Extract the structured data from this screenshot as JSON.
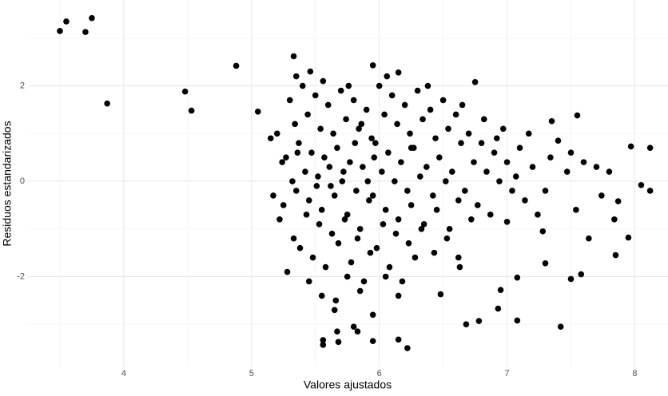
{
  "chart_data": {
    "type": "scatter",
    "x_label": "Valores ajustados",
    "y_label": "Residuos estandarizados",
    "color": "#000000",
    "grid": true,
    "xlim": [
      3.25,
      8.26
    ],
    "ylim": [
      -3.9,
      3.8
    ],
    "xticks": [
      4,
      5,
      6,
      7,
      8
    ],
    "yticks": [
      -2,
      0,
      2
    ],
    "x_minor_ticks": [
      3.5,
      4.5,
      5.5,
      6.5,
      7.5
    ],
    "y_minor_ticks": [
      -3,
      -1,
      1,
      3
    ],
    "x": [
      3.5,
      3.55,
      3.7,
      3.75,
      3.87,
      4.48,
      4.53,
      4.88,
      5.05,
      5.33,
      5.95,
      6.15,
      6.75,
      7.55,
      7.35,
      7.97,
      8.12,
      8.12,
      8.05,
      7.5,
      7.58,
      7.42,
      7.08,
      7.08,
      6.68,
      6.78,
      6.93,
      6.95,
      6.48,
      6.22,
      6.15,
      5.95,
      5.56,
      5.56,
      5.68,
      5.67,
      5.8,
      5.83,
      7.85,
      7.95,
      7.87,
      7.3,
      7.28,
      7.4,
      7.0,
      6.62,
      5.2,
      5.24,
      5.17,
      5.22,
      5.15,
      5.3,
      5.34,
      5.27,
      5.32,
      5.25,
      5.33,
      5.28,
      5.35,
      5.4,
      5.44,
      5.37,
      5.42,
      5.35,
      5.43,
      5.38,
      5.45,
      5.36,
      5.5,
      5.54,
      5.47,
      5.52,
      5.45,
      5.53,
      5.48,
      5.55,
      5.46,
      5.51,
      5.6,
      5.64,
      5.57,
      5.62,
      5.55,
      5.63,
      5.58,
      5.65,
      5.56,
      5.61,
      5.7,
      5.74,
      5.67,
      5.72,
      5.65,
      5.73,
      5.68,
      5.75,
      5.66,
      5.71,
      5.8,
      5.84,
      5.77,
      5.82,
      5.75,
      5.83,
      5.78,
      5.85,
      5.76,
      5.81,
      5.9,
      5.94,
      5.87,
      5.92,
      5.85,
      5.93,
      5.88,
      5.95,
      5.86,
      5.91,
      6.0,
      6.04,
      5.97,
      6.02,
      5.95,
      6.03,
      5.98,
      6.05,
      5.96,
      6.1,
      6.14,
      6.07,
      6.12,
      6.05,
      6.13,
      6.08,
      6.15,
      6.06,
      6.2,
      6.24,
      6.17,
      6.22,
      6.15,
      6.23,
      6.18,
      6.25,
      6.3,
      6.34,
      6.27,
      6.32,
      6.25,
      6.33,
      6.28,
      6.4,
      6.44,
      6.37,
      6.42,
      6.35,
      6.43,
      6.38,
      6.5,
      6.54,
      6.47,
      6.52,
      6.45,
      6.53,
      6.6,
      6.64,
      6.57,
      6.62,
      6.55,
      6.63,
      6.7,
      6.74,
      6.67,
      6.72,
      6.65,
      6.8,
      6.84,
      6.77,
      6.82,
      6.9,
      6.94,
      6.87,
      6.92,
      7.0,
      7.04,
      6.97,
      7.1,
      7.14,
      7.07,
      7.2,
      7.24,
      7.17,
      7.3,
      7.34,
      7.5,
      7.54,
      7.47,
      7.6,
      7.64,
      7.7,
      7.74,
      7.8,
      7.84
    ],
    "y": [
      3.15,
      3.35,
      3.13,
      3.42,
      1.63,
      1.88,
      1.48,
      2.42,
      1.46,
      2.62,
      2.43,
      2.28,
      2.08,
      1.38,
      1.26,
      0.73,
      0.7,
      -0.2,
      -0.08,
      -2.05,
      -1.95,
      -3.05,
      -2.92,
      -2.02,
      -3.0,
      -2.93,
      -2.67,
      -2.28,
      -2.37,
      -3.5,
      -3.32,
      -3.35,
      -3.43,
      -3.33,
      -3.37,
      -3.15,
      -3.05,
      -3.15,
      -1.55,
      -1.18,
      -0.42,
      -1.72,
      -1.05,
      0.85,
      -0.85,
      -1.6,
      1.0,
      0.4,
      -0.3,
      -0.8,
      0.9,
      1.7,
      1.2,
      0.5,
      0.0,
      -0.5,
      -1.2,
      -1.9,
      2.2,
      2.0,
      1.4,
      0.8,
      0.2,
      -0.2,
      -0.7,
      -1.4,
      -2.1,
      0.6,
      1.8,
      1.1,
      0.6,
      0.1,
      -0.4,
      -0.9,
      -1.6,
      -2.4,
      2.3,
      -0.1,
      1.6,
      1.0,
      0.5,
      -0.1,
      -0.6,
      -1.1,
      -1.8,
      -2.7,
      2.1,
      0.3,
      1.9,
      1.3,
      0.7,
      0.2,
      -0.3,
      -0.8,
      -1.3,
      -2.0,
      -2.5,
      0.0,
      1.7,
      1.1,
      0.4,
      -0.2,
      -0.7,
      -1.2,
      -1.7,
      -2.3,
      2.0,
      0.8,
      1.5,
      0.9,
      0.3,
      -0.4,
      -1.0,
      -1.5,
      -2.1,
      -2.8,
      1.2,
      0.0,
      2.0,
      1.4,
      0.8,
      0.2,
      -0.3,
      -0.9,
      -1.4,
      -2.0,
      0.5,
      1.8,
      1.2,
      0.6,
      0.0,
      -0.6,
      -1.1,
      -1.8,
      -2.4,
      2.2,
      1.6,
      1.0,
      0.4,
      -0.2,
      -0.8,
      -1.3,
      -2.1,
      0.7,
      1.9,
      1.3,
      0.7,
      0.1,
      -0.5,
      -1.0,
      -1.6,
      1.5,
      0.9,
      0.3,
      -0.3,
      -0.9,
      -1.5,
      2.0,
      1.7,
      1.1,
      0.5,
      0.0,
      -0.6,
      -1.2,
      1.4,
      0.8,
      0.2,
      -0.4,
      -1.0,
      -1.8,
      1.0,
      0.4,
      -0.2,
      -0.8,
      1.6,
      0.8,
      0.2,
      -0.5,
      1.3,
      0.6,
      0.0,
      -0.7,
      0.9,
      0.4,
      -0.2,
      1.1,
      0.7,
      -0.4,
      0.1,
      0.3,
      -0.7,
      1.0,
      -0.2,
      0.5,
      0.6,
      -0.6,
      0.2,
      0.4,
      -1.2,
      0.3,
      -0.3,
      0.2,
      -0.8
    ]
  }
}
